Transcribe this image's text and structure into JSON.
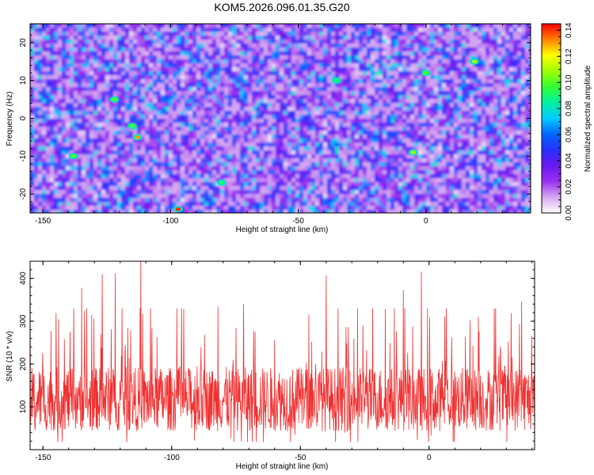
{
  "title": "KOM5.2026.096.01.35.G20",
  "chart_data": [
    {
      "type": "heatmap",
      "title": "KOM5.2026.096.01.35.G20",
      "xlabel": "Height of straight line (km)",
      "ylabel": "Frequency (Hz)",
      "xlim": [
        -155,
        41
      ],
      "ylim": [
        -25,
        25
      ],
      "xticks": [
        -150,
        -100,
        -50,
        0
      ],
      "yticks": [
        -20,
        -10,
        0,
        10,
        20
      ],
      "colorbar": {
        "label": "Normalized spectral amplitude",
        "range": [
          0,
          0.145
        ],
        "ticks": [
          "0.00",
          "0.02",
          "0.04",
          "0.06",
          "0.08",
          "0.10",
          "0.12",
          "0.14"
        ],
        "colormap": [
          "#ffffff",
          "#d6a8f0",
          "#9b30f0",
          "#6a18f0",
          "#2830ff",
          "#0066ff",
          "#00ccff",
          "#00f0a0",
          "#33ff33",
          "#a0ff00",
          "#ffff00",
          "#ff8000",
          "#ff0000"
        ]
      },
      "field_description": "random speckle noise field, mostly 0.01-0.04 with sparse peaks up to about 0.14",
      "peaks": [
        {
          "x": -97,
          "y": -24,
          "v": 0.14
        },
        {
          "x": -113,
          "y": -5,
          "v": 0.13
        },
        {
          "x": -115,
          "y": -2,
          "v": 0.1
        },
        {
          "x": -5,
          "y": -9,
          "v": 0.11
        },
        {
          "x": -122,
          "y": 5,
          "v": 0.1
        },
        {
          "x": 19,
          "y": 15,
          "v": 0.11
        },
        {
          "x": 0,
          "y": 12,
          "v": 0.1
        },
        {
          "x": -35,
          "y": 10,
          "v": 0.09
        },
        {
          "x": -138,
          "y": -10,
          "v": 0.1
        },
        {
          "x": -80,
          "y": -17,
          "v": 0.09
        }
      ]
    },
    {
      "type": "line",
      "xlabel": "Height of straight line (km)",
      "ylabel": "SNR (10 * v/v)",
      "xlim": [
        -155,
        41
      ],
      "ylim": [
        0,
        440
      ],
      "xticks": [
        -150,
        -100,
        -50,
        0
      ],
      "yticks": [
        100,
        200,
        300,
        400
      ],
      "color": "#f03030",
      "series": [
        {
          "name": "SNR",
          "description": "noisy signal, baseline about 120, range roughly 20-440, approx 1400 samples"
        }
      ],
      "peaks": [
        {
          "x": -112,
          "y": 440
        },
        {
          "x": -122,
          "y": 412
        },
        {
          "x": -127,
          "y": 410
        },
        {
          "x": -40,
          "y": 407
        },
        {
          "x": -3,
          "y": 416
        },
        {
          "x": -155,
          "y": 375
        },
        {
          "x": -135,
          "y": 378
        },
        {
          "x": -10,
          "y": 373
        },
        {
          "x": 36,
          "y": 346
        },
        {
          "x": -72,
          "y": 340
        },
        {
          "x": -82,
          "y": 334
        },
        {
          "x": -133,
          "y": 330
        }
      ]
    }
  ]
}
